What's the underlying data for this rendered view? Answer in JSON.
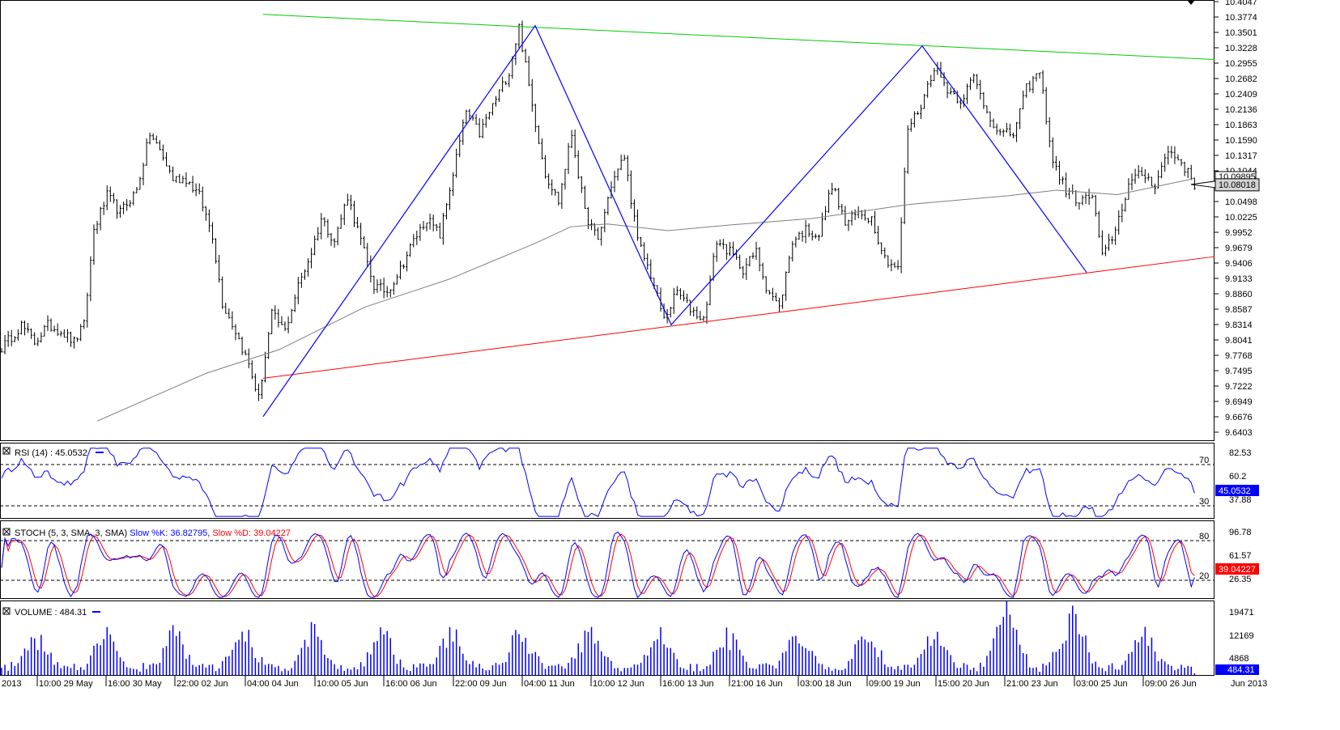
{
  "colors": {
    "background": "#ffffff",
    "bar": "#000000",
    "ma": "#7f7f7f",
    "pattern": "#0000ff",
    "resistance": "#00cc00",
    "support": "#ff0000",
    "rsi": "#0000ff",
    "stoch_k": "#0000ff",
    "stoch_d": "#ff0000",
    "volume": "#0000ff"
  },
  "price_panel": {
    "price_ticks": [
      "10.4047",
      "10.3774",
      "10.3501",
      "10.3228",
      "10.2955",
      "10.2682",
      "10.2409",
      "10.2136",
      "10.1863",
      "10.1590",
      "10.1317",
      "10.1044",
      "10.0498",
      "10.0225",
      "9.9952",
      "9.9679",
      "9.9406",
      "9.9133",
      "9.8860",
      "9.8587",
      "9.8314",
      "9.8041",
      "9.7768",
      "9.7495",
      "9.7222",
      "9.6949",
      "9.6676",
      "9.6403"
    ],
    "last_price_label": "10.08018",
    "hidden_price_label": "10.09895",
    "y_range": [
      9.6403,
      10.4047
    ],
    "last_price": 10.08018,
    "resistance_line": [
      [
        0,
        10.382
      ],
      [
        1,
        10.302
      ]
    ],
    "support_line": [
      [
        0,
        9.736
      ],
      [
        1,
        9.952
      ]
    ],
    "zigzag": [
      {
        "time": "04:00 04 Jun",
        "price": 9.668
      },
      {
        "time": "04:00 11 Jun",
        "price": 10.362
      },
      {
        "time": "16:00 13 Jun",
        "price": 9.831
      },
      {
        "time": "09:00 19 Jun",
        "price": 10.326
      },
      {
        "time": "03:00 25 Jun",
        "price": 9.924
      }
    ]
  },
  "rsi_panel": {
    "title": "RSI (14) : 45.0532",
    "levels": [
      "82.53",
      "60.2",
      "37.88"
    ],
    "marker_labels": [
      "70",
      "30"
    ],
    "current_label": "45.0532",
    "current": 45.0532,
    "y_range": [
      23,
      88
    ]
  },
  "stoch_panel": {
    "title_prefix": "STOCH (5, 3, SMA, 3, SMA)",
    "k_label": "Slow %K: 36.82795",
    "d_label": "Slow %D: 39.04227",
    "levels": [
      "96.78",
      "61.57",
      "26.35"
    ],
    "marker_labels": [
      "80",
      "20"
    ],
    "current_label": "39.04227",
    "k_current": 36.82795,
    "d_current": 39.04227,
    "y_range": [
      8,
      112
    ]
  },
  "volume_panel": {
    "title": "VOLUME : 484.31",
    "levels": [
      "19471",
      "12169",
      "4868"
    ],
    "current_label": "484.31",
    "current": 484.31,
    "y_range": [
      0,
      21000
    ]
  },
  "time_axis": {
    "labels": [
      "2013",
      "10:00 29 May",
      "16:00 30 May",
      "22:00 02 Jun",
      "04:00 04 Jun",
      "10:00 05 Jun",
      "16:00 06 Jun",
      "22:00 09 Jun",
      "04:00 11 Jun",
      "10:00 12 Jun",
      "16:00 13 Jun",
      "21:00 16 Jun",
      "03:00 18 Jun",
      "09:00 19 Jun",
      "15:00 20 Jun",
      "21:00 23 Jun",
      "03:00 25 Jun",
      "09:00 26 Jun",
      "Jun 2013"
    ]
  },
  "chart_data": {
    "type": "line",
    "subtype": "ohlc-bars",
    "title": "",
    "xlabel": "",
    "ylabel": "",
    "ylim": [
      9.6403,
      10.4047
    ],
    "grid": false,
    "legend": "none",
    "x_ticks": [
      "10:00 29 May",
      "16:00 30 May",
      "22:00 02 Jun",
      "04:00 04 Jun",
      "10:00 05 Jun",
      "16:00 06 Jun",
      "22:00 09 Jun",
      "04:00 11 Jun",
      "10:00 12 Jun",
      "16:00 13 Jun",
      "21:00 16 Jun",
      "03:00 18 Jun",
      "09:00 19 Jun",
      "15:00 20 Jun",
      "21:00 23 Jun",
      "03:00 25 Jun",
      "09:00 26 Jun"
    ],
    "close_anchors": [
      [
        0,
        9.79
      ],
      [
        6,
        9.83
      ],
      [
        10,
        9.8
      ],
      [
        14,
        9.83
      ],
      [
        18,
        9.82
      ],
      [
        22,
        9.8
      ],
      [
        25,
        9.83
      ],
      [
        28,
        10.0
      ],
      [
        32,
        10.06
      ],
      [
        36,
        10.03
      ],
      [
        41,
        10.07
      ],
      [
        45,
        10.17
      ],
      [
        48,
        10.14
      ],
      [
        52,
        10.09
      ],
      [
        56,
        10.09
      ],
      [
        60,
        10.06
      ],
      [
        64,
        9.99
      ],
      [
        67,
        9.87
      ],
      [
        71,
        9.82
      ],
      [
        75,
        9.76
      ],
      [
        78,
        9.7
      ],
      [
        82,
        9.85
      ],
      [
        86,
        9.82
      ],
      [
        90,
        9.9
      ],
      [
        94,
        9.96
      ],
      [
        97,
        10.02
      ],
      [
        101,
        9.98
      ],
      [
        105,
        10.06
      ],
      [
        109,
        9.98
      ],
      [
        113,
        9.9
      ],
      [
        117,
        9.89
      ],
      [
        121,
        9.93
      ],
      [
        125,
        9.98
      ],
      [
        129,
        10.02
      ],
      [
        133,
        9.99
      ],
      [
        137,
        10.1
      ],
      [
        141,
        10.21
      ],
      [
        145,
        10.17
      ],
      [
        149,
        10.22
      ],
      [
        154,
        10.28
      ],
      [
        157,
        10.36
      ],
      [
        161,
        10.22
      ],
      [
        165,
        10.1
      ],
      [
        169,
        10.05
      ],
      [
        173,
        10.17
      ],
      [
        177,
        10.03
      ],
      [
        181,
        9.98
      ],
      [
        185,
        10.08
      ],
      [
        189,
        10.13
      ],
      [
        193,
        9.98
      ],
      [
        197,
        9.92
      ],
      [
        201,
        9.84
      ],
      [
        205,
        9.89
      ],
      [
        209,
        9.86
      ],
      [
        213,
        9.84
      ],
      [
        217,
        9.98
      ],
      [
        221,
        9.96
      ],
      [
        225,
        9.93
      ],
      [
        229,
        9.96
      ],
      [
        232,
        9.9
      ],
      [
        236,
        9.86
      ],
      [
        240,
        9.98
      ],
      [
        244,
        10.0
      ],
      [
        248,
        9.99
      ],
      [
        252,
        10.08
      ],
      [
        256,
        10.01
      ],
      [
        260,
        10.03
      ],
      [
        264,
        10.02
      ],
      [
        268,
        9.95
      ],
      [
        272,
        9.93
      ],
      [
        275,
        10.18
      ],
      [
        279,
        10.22
      ],
      [
        283,
        10.29
      ],
      [
        287,
        10.25
      ],
      [
        291,
        10.23
      ],
      [
        295,
        10.27
      ],
      [
        299,
        10.21
      ],
      [
        303,
        10.17
      ],
      [
        307,
        10.17
      ],
      [
        311,
        10.25
      ],
      [
        315,
        10.28
      ],
      [
        319,
        10.12
      ],
      [
        323,
        10.07
      ],
      [
        327,
        10.05
      ],
      [
        331,
        10.06
      ],
      [
        334,
        9.95
      ],
      [
        338,
        10.0
      ],
      [
        342,
        10.08
      ],
      [
        346,
        10.1
      ],
      [
        350,
        10.08
      ],
      [
        354,
        10.14
      ],
      [
        358,
        10.12
      ],
      [
        362,
        10.08
      ]
    ],
    "ma200_anchors": [
      [
        0.08,
        9.66
      ],
      [
        0.17,
        9.745
      ],
      [
        0.23,
        9.787
      ],
      [
        0.3,
        9.862
      ],
      [
        0.37,
        9.912
      ],
      [
        0.44,
        9.975
      ],
      [
        0.47,
        10.005
      ],
      [
        0.5,
        10.01
      ],
      [
        0.55,
        9.998
      ],
      [
        0.6,
        10.008
      ],
      [
        0.67,
        10.02
      ],
      [
        0.75,
        10.045
      ],
      [
        0.83,
        10.06
      ],
      [
        0.87,
        10.07
      ],
      [
        0.92,
        10.062
      ],
      [
        0.96,
        10.08
      ],
      [
        0.982,
        10.09
      ]
    ],
    "series": [
      {
        "name": "RSI (14)",
        "last": 45.0532
      },
      {
        "name": "Slow %K",
        "last": 36.82795
      },
      {
        "name": "Slow %D",
        "last": 39.04227
      },
      {
        "name": "VOLUME",
        "last": 484.31
      }
    ]
  }
}
